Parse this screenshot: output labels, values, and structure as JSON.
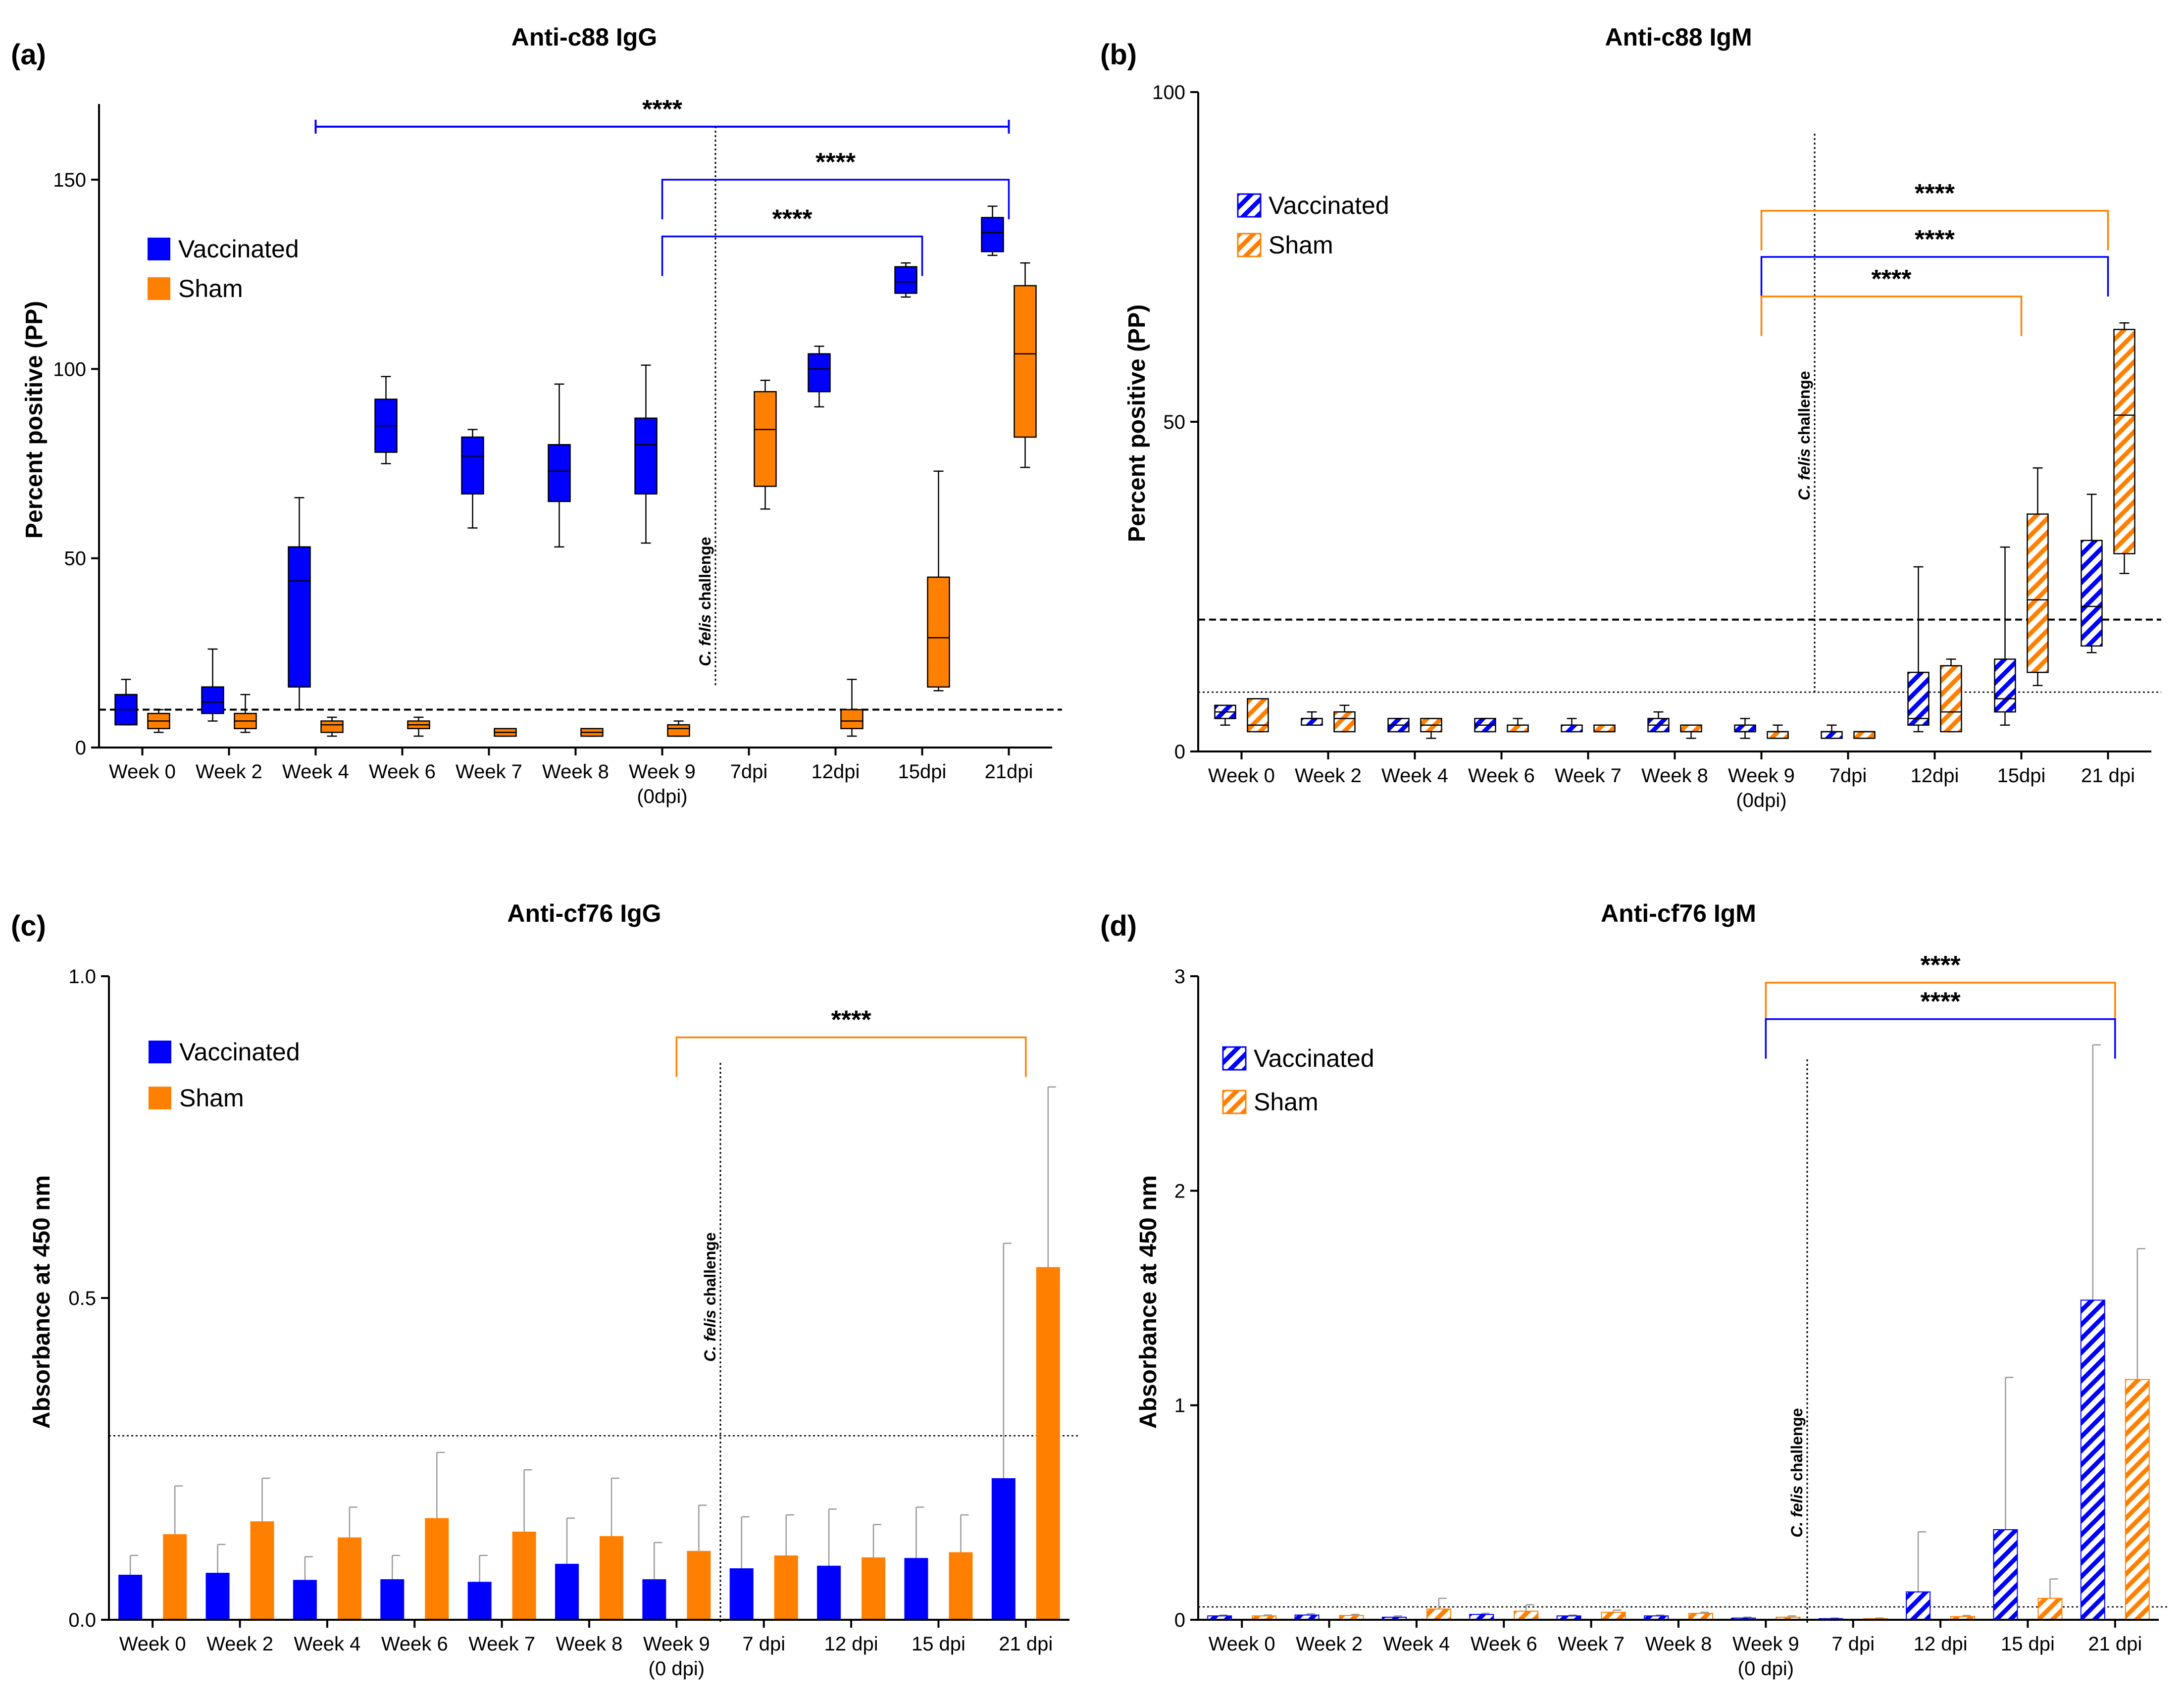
{
  "colors": {
    "vaccinated": "#0000ff",
    "sham": "#ff8000",
    "axis": "#000000",
    "error": "#999999"
  },
  "chart_data": [
    {
      "panel": "(a)",
      "type": "box",
      "title": "Anti-c88 IgG",
      "ylabel": "Percent positive (PP)",
      "ylim": [
        0,
        170
      ],
      "yticks": [
        0,
        50,
        100,
        150
      ],
      "ytick_labels": [
        "0",
        "50",
        "100",
        "150"
      ],
      "categories": [
        "Week 0",
        "Week 2",
        "Week 4",
        "Week 6",
        "Week 7",
        "Week 8",
        "Week 9",
        "7dpi",
        "12dpi",
        "15dpi",
        "21dpi"
      ],
      "category_sublabels": [
        "",
        "",
        "",
        "",
        "",
        "",
        "(0dpi)",
        "",
        "",
        "",
        ""
      ],
      "hatched": false,
      "legend": [
        "Vaccinated",
        "Sham"
      ],
      "cutoffs": [
        {
          "value": 10,
          "style": "dashed"
        }
      ],
      "challenge_text": {
        "italic": "C. felis",
        "rest": " challenge"
      },
      "series": [
        {
          "name": "Vaccinated",
          "boxes": [
            {
              "min": 6,
              "q1": 6,
              "med": 10,
              "q3": 14,
              "max": 18
            },
            {
              "min": 7,
              "q1": 9,
              "med": 12,
              "q3": 16,
              "max": 26
            },
            {
              "min": 10,
              "q1": 16,
              "med": 44,
              "q3": 53,
              "max": 66
            },
            {
              "min": 75,
              "q1": 78,
              "med": 85,
              "q3": 92,
              "max": 98
            },
            {
              "min": 58,
              "q1": 67,
              "med": 77,
              "q3": 82,
              "max": 84
            },
            {
              "min": 53,
              "q1": 65,
              "med": 73,
              "q3": 80,
              "max": 96
            },
            {
              "min": 54,
              "q1": 67,
              "med": 80,
              "q3": 87,
              "max": 101
            },
            null,
            {
              "min": 90,
              "q1": 94,
              "med": 100,
              "q3": 104,
              "max": 106
            },
            {
              "min": 119,
              "q1": 120,
              "med": 123,
              "q3": 127,
              "max": 128
            },
            {
              "min": 130,
              "q1": 131,
              "med": 136,
              "q3": 140,
              "max": 143
            }
          ]
        },
        {
          "name": "Sham",
          "boxes": [
            {
              "min": 4,
              "q1": 5,
              "med": 7,
              "q3": 9,
              "max": 10
            },
            {
              "min": 4,
              "q1": 5,
              "med": 7,
              "q3": 9,
              "max": 14
            },
            {
              "min": 3,
              "q1": 4,
              "med": 6,
              "q3": 7,
              "max": 8
            },
            {
              "min": 3,
              "q1": 5,
              "med": 6,
              "q3": 7,
              "max": 8
            },
            {
              "min": 3,
              "q1": 3,
              "med": 4,
              "q3": 5,
              "max": 5
            },
            {
              "min": 3,
              "q1": 3,
              "med": 4,
              "q3": 5,
              "max": 5
            },
            {
              "min": 3,
              "q1": 3,
              "med": 5,
              "q3": 6,
              "max": 7
            },
            {
              "min": 63,
              "q1": 69,
              "med": 84,
              "q3": 94,
              "max": 97
            },
            {
              "min": 3,
              "q1": 5,
              "med": 7,
              "q3": 10,
              "max": 18
            },
            {
              "min": 15,
              "q1": 16,
              "med": 29,
              "q3": 45,
              "max": 73
            },
            {
              "min": 74,
              "q1": 82,
              "med": 104,
              "q3": 122,
              "max": 128
            }
          ]
        }
      ],
      "significance": [
        {
          "from": 2,
          "to": 10,
          "level": 164,
          "color": "vaccinated",
          "label": "****",
          "style": "cap"
        },
        {
          "from": 6,
          "to": 10,
          "level": 150,
          "color": "vaccinated",
          "label": "****",
          "style": "bracket"
        },
        {
          "from": 6,
          "to": 9,
          "level": 135,
          "color": "vaccinated",
          "label": "****",
          "style": "bracket"
        }
      ]
    },
    {
      "panel": "(b)",
      "type": "box",
      "title": "Anti-c88 IgM",
      "ylabel": "Percent positive (PP)",
      "ylim": [
        0,
        100
      ],
      "yticks": [
        0,
        50,
        100
      ],
      "ytick_labels": [
        "0",
        "50",
        "100"
      ],
      "categories": [
        "Week 0",
        "Week 2",
        "Week 4",
        "Week 6",
        "Week 7",
        "Week 8",
        "Week 9",
        "7dpi",
        "12dpi",
        "15dpi",
        "21 dpi"
      ],
      "category_sublabels": [
        "",
        "",
        "",
        "",
        "",
        "",
        "(0dpi)",
        "",
        "",
        "",
        ""
      ],
      "hatched": true,
      "legend": [
        "Vaccinated",
        "Sham"
      ],
      "cutoffs": [
        {
          "value": 20,
          "style": "dashed"
        },
        {
          "value": 9,
          "style": "dotted"
        }
      ],
      "challenge_text": {
        "italic": "C. felis",
        "rest": " challenge"
      },
      "series": [
        {
          "name": "Vaccinated",
          "boxes": [
            {
              "min": 4,
              "q1": 5,
              "med": 6,
              "q3": 7,
              "max": 7
            },
            {
              "min": 4,
              "q1": 4,
              "med": 5,
              "q3": 5,
              "max": 6
            },
            {
              "min": 3,
              "q1": 3,
              "med": 4,
              "q3": 5,
              "max": 5
            },
            {
              "min": 3,
              "q1": 3,
              "med": 4,
              "q3": 5,
              "max": 5
            },
            {
              "min": 3,
              "q1": 3,
              "med": 4,
              "q3": 4,
              "max": 5
            },
            {
              "min": 3,
              "q1": 3,
              "med": 4,
              "q3": 5,
              "max": 6
            },
            {
              "min": 2,
              "q1": 3,
              "med": 3,
              "q3": 4,
              "max": 5
            },
            {
              "min": 2,
              "q1": 2,
              "med": 3,
              "q3": 3,
              "max": 4
            },
            {
              "min": 3,
              "q1": 4,
              "med": 5,
              "q3": 12,
              "max": 28
            },
            {
              "min": 4,
              "q1": 6,
              "med": 8,
              "q3": 14,
              "max": 31
            },
            {
              "min": 15,
              "q1": 16,
              "med": 22,
              "q3": 32,
              "max": 39
            }
          ]
        },
        {
          "name": "Sham",
          "boxes": [
            {
              "min": 3,
              "q1": 3,
              "med": 4,
              "q3": 8,
              "max": 8
            },
            {
              "min": 3,
              "q1": 3,
              "med": 5,
              "q3": 6,
              "max": 7
            },
            {
              "min": 2,
              "q1": 3,
              "med": 4,
              "q3": 5,
              "max": 5
            },
            {
              "min": 3,
              "q1": 3,
              "med": 4,
              "q3": 4,
              "max": 5
            },
            {
              "min": 3,
              "q1": 3,
              "med": 3,
              "q3": 4,
              "max": 4
            },
            {
              "min": 2,
              "q1": 3,
              "med": 3,
              "q3": 4,
              "max": 4
            },
            {
              "min": 2,
              "q1": 2,
              "med": 3,
              "q3": 3,
              "max": 4
            },
            {
              "min": 2,
              "q1": 2,
              "med": 3,
              "q3": 3,
              "max": 3
            },
            {
              "min": 3,
              "q1": 3,
              "med": 6,
              "q3": 13,
              "max": 14
            },
            {
              "min": 10,
              "q1": 12,
              "med": 23,
              "q3": 36,
              "max": 43
            },
            {
              "min": 27,
              "q1": 30,
              "med": 51,
              "q3": 64,
              "max": 65
            }
          ]
        }
      ],
      "significance": [
        {
          "from": 6,
          "to": 10,
          "level": 82,
          "color": "sham",
          "label": "****",
          "style": "bracket"
        },
        {
          "from": 6,
          "to": 10,
          "level": 75,
          "color": "vaccinated",
          "label": "****",
          "style": "bracket"
        },
        {
          "from": 6,
          "to": 9,
          "level": 69,
          "color": "sham",
          "label": "****",
          "style": "bracket"
        }
      ]
    },
    {
      "panel": "(c)",
      "type": "bar",
      "title": "Anti-cf76 IgG",
      "ylabel": "Absorbance at 450 nm",
      "ylim": [
        0,
        1.0
      ],
      "yticks": [
        0,
        0.5,
        1.0
      ],
      "ytick_labels": [
        "0.0",
        "0.5",
        "1.0"
      ],
      "categories": [
        "Week 0",
        "Week 2",
        "Week 4",
        "Week 6",
        "Week 7",
        "Week 8",
        "Week 9",
        "7 dpi",
        "12 dpi",
        "15 dpi",
        "21 dpi"
      ],
      "category_sublabels": [
        "",
        "",
        "",
        "",
        "",
        "",
        "(0 dpi)",
        "",
        "",
        "",
        ""
      ],
      "hatched": false,
      "legend": [
        "Vaccinated",
        "Sham"
      ],
      "cutoffs": [
        {
          "value": 0.286,
          "style": "dotted"
        }
      ],
      "challenge_text": {
        "italic": "C. felis",
        "rest": " challenge"
      },
      "series": [
        {
          "name": "Vaccinated",
          "values": [
            0.07,
            0.073,
            0.062,
            0.063,
            0.059,
            0.087,
            0.063,
            0.08,
            0.084,
            0.096,
            0.22
          ],
          "errors": [
            0.1,
            0.117,
            0.098,
            0.1,
            0.1,
            0.158,
            0.12,
            0.16,
            0.172,
            0.175,
            0.585
          ]
        },
        {
          "name": "Sham",
          "values": [
            0.133,
            0.153,
            0.128,
            0.158,
            0.137,
            0.13,
            0.107,
            0.1,
            0.097,
            0.105,
            0.548
          ],
          "errors": [
            0.208,
            0.22,
            0.175,
            0.26,
            0.233,
            0.22,
            0.178,
            0.163,
            0.148,
            0.163,
            0.828
          ]
        }
      ],
      "significance": [
        {
          "from": 6,
          "to": 10,
          "level": 0.905,
          "color": "sham",
          "label": "****",
          "style": "bracket"
        }
      ]
    },
    {
      "panel": "(d)",
      "type": "bar",
      "title": "Anti-cf76 IgM",
      "ylabel": "Absorbance at 450 nm",
      "ylim": [
        0,
        3
      ],
      "yticks": [
        0,
        1,
        2,
        3
      ],
      "ytick_labels": [
        "0",
        "1",
        "2",
        "3"
      ],
      "categories": [
        "Week 0",
        "Week 2",
        "Week 4",
        "Week 6",
        "Week 7",
        "Week 8",
        "Week 9",
        "7 dpi",
        "12 dpi",
        "15 dpi",
        "21 dpi"
      ],
      "category_sublabels": [
        "",
        "",
        "",
        "",
        "",
        "",
        "(0 dpi)",
        "",
        "",
        "",
        ""
      ],
      "hatched": true,
      "legend": [
        "Vaccinated",
        "Sham"
      ],
      "cutoffs": [
        {
          "value": 0.06,
          "style": "dotted"
        }
      ],
      "challenge_text": {
        "italic": "C. felis",
        "rest": " challenge"
      },
      "series": [
        {
          "name": "Vaccinated",
          "values": [
            0.018,
            0.022,
            0.012,
            0.025,
            0.018,
            0.018,
            0.008,
            0.005,
            0.13,
            0.42,
            1.49
          ],
          "errors": [
            0.022,
            0.028,
            0.018,
            0.03,
            0.022,
            0.022,
            0.012,
            0.008,
            0.41,
            1.13,
            2.68
          ]
        },
        {
          "name": "Sham",
          "values": [
            0.018,
            0.02,
            0.05,
            0.04,
            0.035,
            0.03,
            0.012,
            0.005,
            0.015,
            0.1,
            1.12
          ],
          "errors": [
            0.022,
            0.025,
            0.1,
            0.07,
            0.045,
            0.035,
            0.018,
            0.008,
            0.02,
            0.19,
            1.73
          ]
        }
      ],
      "significance": [
        {
          "from": 6,
          "to": 10,
          "level": 2.97,
          "color": "sham",
          "label": "****",
          "style": "bracket"
        },
        {
          "from": 6,
          "to": 10,
          "level": 2.8,
          "color": "vaccinated",
          "label": "****",
          "style": "bracket"
        }
      ]
    }
  ]
}
